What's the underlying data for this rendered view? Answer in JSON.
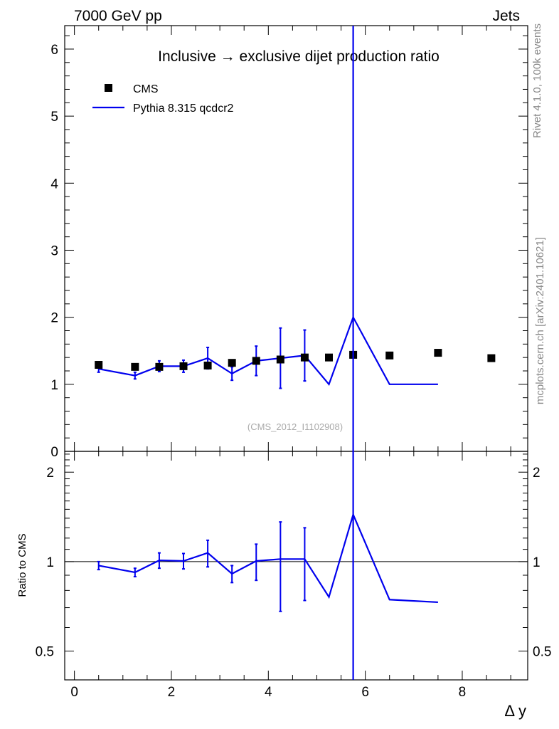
{
  "header": {
    "left": "7000 GeV pp",
    "right": "Jets"
  },
  "side_labels": {
    "rivet": "Rivet 4.1.0,  100k events",
    "mcplots": "mcplots.cern.ch [arXiv:2401.10621]"
  },
  "chart_data": {
    "type": "scatter",
    "title": "Inclusive → exclusive dijet production ratio",
    "xlabel": "Δ y",
    "analysis_tag": "(CMS_2012_I1102908)",
    "colors": {
      "data": "#000000",
      "mc": "#0000ee",
      "ref": "#000000"
    },
    "main": {
      "xlim": [
        -0.2,
        9.35
      ],
      "ylim": [
        0,
        6.35
      ],
      "xticks": [
        0,
        2,
        4,
        6,
        8
      ],
      "xtick_labels": [
        "0",
        "2",
        "4",
        "6",
        "8"
      ],
      "yticks": [
        0,
        1,
        2,
        3,
        4,
        5,
        6
      ],
      "ytick_labels": [
        "0",
        "1",
        "2",
        "3",
        "4",
        "5",
        "6"
      ]
    },
    "ratio": {
      "ylabel": "Ratio to CMS",
      "ylim": [
        0.4,
        2.35
      ],
      "ref_line": 1,
      "yticks": [
        0.5,
        1,
        2
      ],
      "ytick_labels": [
        "0.5",
        "1",
        "2"
      ]
    },
    "legend": [
      {
        "label": "CMS",
        "marker": "square"
      },
      {
        "label": "Pythia 8.315 qcdcr2",
        "marker": "line"
      }
    ],
    "series": [
      {
        "name": "CMS",
        "x": [
          0.5,
          1.25,
          1.75,
          2.25,
          2.75,
          3.25,
          3.75,
          4.25,
          4.75,
          5.25,
          5.75,
          6.5,
          7.5,
          8.6
        ],
        "y": [
          1.29,
          1.26,
          1.26,
          1.27,
          1.28,
          1.32,
          1.35,
          1.37,
          1.4,
          1.4,
          1.44,
          1.43,
          1.47,
          1.39
        ]
      },
      {
        "name": "Pythia 8.315 qcdcr2",
        "x": [
          0.5,
          1.25,
          1.75,
          2.25,
          2.75,
          3.25,
          3.75,
          4.25,
          4.75,
          5.25,
          5.75,
          6.5,
          7.5
        ],
        "y": [
          1.23,
          1.13,
          1.27,
          1.27,
          1.39,
          1.16,
          1.35,
          1.39,
          1.43,
          1.0,
          2.0,
          1.0,
          1.0
        ],
        "err": [
          0.05,
          0.05,
          0.08,
          0.09,
          0.16,
          0.1,
          0.22,
          0.45,
          0.38,
          0,
          0,
          0,
          0
        ],
        "ratio": [
          0.97,
          0.92,
          1.01,
          1.005,
          1.07,
          0.91,
          1.005,
          1.02,
          1.02,
          0.76,
          1.44,
          0.745,
          0.73
        ],
        "ratio_err": [
          0.03,
          0.03,
          0.06,
          0.06,
          0.11,
          0.06,
          0.14,
          0.34,
          0.28,
          0,
          0,
          0,
          0
        ],
        "vline_x": 5.75
      }
    ]
  }
}
